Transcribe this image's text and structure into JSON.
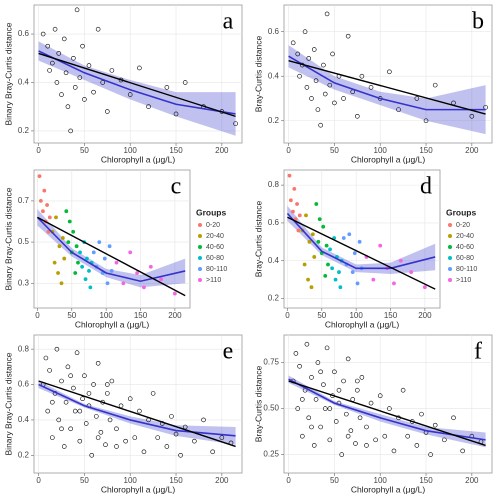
{
  "chart_data": [
    {
      "type": "scatter",
      "panel": "a",
      "x_label": "Chlorophyll a (μg/L)",
      "y_label": "Binary Bray-Curtis distance",
      "xlim": [
        -5,
        222
      ],
      "ylim": [
        0.15,
        0.72
      ],
      "xticks": [
        0,
        50,
        100,
        150,
        200
      ],
      "yticks": [
        0.2,
        0.4,
        0.6
      ],
      "grid": true,
      "series": [
        {
          "color": "#000000",
          "x": [
            5,
            10,
            12,
            15,
            18,
            20,
            22,
            25,
            28,
            30,
            32,
            35,
            38,
            40,
            42,
            45,
            48,
            50,
            55,
            60,
            65,
            70,
            75,
            80,
            90,
            100,
            110,
            120,
            140,
            150,
            160,
            180,
            200,
            215
          ],
          "y": [
            0.6,
            0.55,
            0.45,
            0.48,
            0.62,
            0.4,
            0.52,
            0.35,
            0.58,
            0.44,
            0.3,
            0.2,
            0.5,
            0.38,
            0.7,
            0.42,
            0.55,
            0.33,
            0.47,
            0.36,
            0.62,
            0.4,
            0.28,
            0.45,
            0.41,
            0.35,
            0.46,
            0.3,
            0.38,
            0.27,
            0.4,
            0.3,
            0.28,
            0.23
          ]
        }
      ],
      "linear_fit": {
        "color": "#000000",
        "x": [
          0,
          215
        ],
        "y": [
          0.52,
          0.26
        ]
      },
      "loess_fit": {
        "color": "#3333cc",
        "x": [
          0,
          50,
          100,
          150,
          215
        ],
        "y": [
          0.53,
          0.44,
          0.37,
          0.31,
          0.27
        ],
        "lower": [
          0.49,
          0.41,
          0.33,
          0.26,
          0.18
        ],
        "upper": [
          0.57,
          0.47,
          0.41,
          0.36,
          0.36
        ]
      }
    },
    {
      "type": "scatter",
      "panel": "b",
      "x_label": "Chlorophyll a (μg/L)",
      "y_label": "Bray-Curtis distance",
      "xlim": [
        -5,
        222
      ],
      "ylim": [
        0.1,
        0.72
      ],
      "xticks": [
        0,
        50,
        100,
        150,
        200
      ],
      "yticks": [
        0.2,
        0.4,
        0.6
      ],
      "grid": true,
      "series": [
        {
          "color": "#000000",
          "x": [
            5,
            10,
            12,
            15,
            18,
            20,
            22,
            25,
            28,
            30,
            32,
            35,
            38,
            40,
            42,
            45,
            48,
            50,
            55,
            60,
            65,
            70,
            75,
            80,
            90,
            100,
            110,
            120,
            140,
            150,
            160,
            180,
            200,
            215
          ],
          "y": [
            0.55,
            0.5,
            0.4,
            0.45,
            0.6,
            0.35,
            0.48,
            0.3,
            0.52,
            0.38,
            0.25,
            0.18,
            0.45,
            0.32,
            0.68,
            0.36,
            0.5,
            0.28,
            0.4,
            0.3,
            0.58,
            0.33,
            0.22,
            0.4,
            0.35,
            0.3,
            0.42,
            0.25,
            0.3,
            0.2,
            0.36,
            0.28,
            0.22,
            0.26
          ]
        }
      ],
      "linear_fit": {
        "color": "#000000",
        "x": [
          0,
          215
        ],
        "y": [
          0.47,
          0.23
        ]
      },
      "loess_fit": {
        "color": "#3333cc",
        "x": [
          0,
          50,
          100,
          150,
          215
        ],
        "y": [
          0.49,
          0.37,
          0.3,
          0.25,
          0.25
        ],
        "lower": [
          0.44,
          0.34,
          0.27,
          0.2,
          0.14
        ],
        "upper": [
          0.54,
          0.4,
          0.33,
          0.3,
          0.36
        ]
      }
    },
    {
      "type": "scatter",
      "panel": "c",
      "x_label": "Chlorophyll a (μg/L)",
      "y_label": "Binary Bray-Curtis distance",
      "legend_title": "Groups",
      "xlim": [
        -5,
        222
      ],
      "ylim": [
        0.18,
        0.85
      ],
      "xticks": [
        0,
        50,
        100,
        150,
        200
      ],
      "yticks": [
        0.3,
        0.5,
        0.7
      ],
      "grid": true,
      "series": [
        {
          "name": "0-20",
          "color": "#f8766d",
          "x": [
            3,
            5,
            8,
            10,
            12,
            14,
            16,
            18
          ],
          "y": [
            0.82,
            0.7,
            0.65,
            0.75,
            0.6,
            0.68,
            0.55,
            0.62
          ]
        },
        {
          "name": "20-40",
          "color": "#b79f00",
          "x": [
            22,
            25,
            27,
            30,
            32,
            35,
            37,
            39
          ],
          "y": [
            0.55,
            0.4,
            0.62,
            0.35,
            0.48,
            0.3,
            0.52,
            0.42
          ]
        },
        {
          "name": "40-60",
          "color": "#00ba38",
          "x": [
            42,
            45,
            47,
            50,
            52,
            55,
            57,
            59
          ],
          "y": [
            0.65,
            0.5,
            0.6,
            0.45,
            0.55,
            0.35,
            0.48,
            0.4
          ]
        },
        {
          "name": "60-80",
          "color": "#00bfc4",
          "x": [
            62,
            65,
            68,
            70,
            72,
            75,
            77,
            79
          ],
          "y": [
            0.45,
            0.38,
            0.5,
            0.32,
            0.42,
            0.36,
            0.28,
            0.4
          ]
        },
        {
          "name": "80-110",
          "color": "#619cff",
          "x": [
            82,
            86,
            90,
            95,
            98,
            102,
            105,
            108
          ],
          "y": [
            0.45,
            0.38,
            0.5,
            0.35,
            0.42,
            0.3,
            0.48,
            0.36
          ]
        },
        {
          "name": ">110",
          "color": "#f564e3",
          "x": [
            115,
            125,
            135,
            145,
            155,
            165,
            180,
            200
          ],
          "y": [
            0.4,
            0.3,
            0.45,
            0.35,
            0.28,
            0.38,
            0.32,
            0.25
          ]
        }
      ],
      "linear_fit": {
        "color": "#000000",
        "x": [
          0,
          215
        ],
        "y": [
          0.62,
          0.24
        ]
      },
      "loess_fit": {
        "color": "#3333cc",
        "x": [
          0,
          50,
          100,
          150,
          215
        ],
        "y": [
          0.62,
          0.45,
          0.35,
          0.31,
          0.36
        ],
        "lower": [
          0.58,
          0.43,
          0.33,
          0.28,
          0.3
        ],
        "upper": [
          0.66,
          0.47,
          0.37,
          0.34,
          0.42
        ]
      }
    },
    {
      "type": "scatter",
      "panel": "d",
      "x_label": "Chlorophyll a (μg/L)",
      "y_label": "Bray-Curtis distance",
      "legend_title": "Groups",
      "xlim": [
        -5,
        222
      ],
      "ylim": [
        0.15,
        0.88
      ],
      "xticks": [
        0,
        50,
        100,
        150,
        200
      ],
      "yticks": [
        0.2,
        0.4,
        0.6,
        0.8
      ],
      "grid": true,
      "series": [
        {
          "name": "0-20",
          "color": "#f8766d",
          "x": [
            3,
            5,
            8,
            10,
            12,
            14,
            16,
            18
          ],
          "y": [
            0.85,
            0.72,
            0.66,
            0.78,
            0.62,
            0.7,
            0.56,
            0.64
          ]
        },
        {
          "name": "20-40",
          "color": "#b79f00",
          "x": [
            22,
            25,
            27,
            30,
            32,
            35,
            37,
            39
          ],
          "y": [
            0.56,
            0.38,
            0.64,
            0.3,
            0.5,
            0.26,
            0.54,
            0.42
          ]
        },
        {
          "name": "40-60",
          "color": "#00ba38",
          "x": [
            42,
            45,
            47,
            50,
            52,
            55,
            57,
            59
          ],
          "y": [
            0.7,
            0.5,
            0.62,
            0.44,
            0.58,
            0.32,
            0.48,
            0.38
          ]
        },
        {
          "name": "60-80",
          "color": "#00bfc4",
          "x": [
            62,
            65,
            68,
            70,
            72,
            75,
            77,
            79
          ],
          "y": [
            0.46,
            0.36,
            0.52,
            0.3,
            0.42,
            0.34,
            0.26,
            0.4
          ]
        },
        {
          "name": "80-110",
          "color": "#619cff",
          "x": [
            82,
            86,
            90,
            95,
            98,
            102,
            105,
            108
          ],
          "y": [
            0.52,
            0.38,
            0.54,
            0.34,
            0.44,
            0.28,
            0.5,
            0.36
          ]
        },
        {
          "name": ">110",
          "color": "#f564e3",
          "x": [
            115,
            125,
            135,
            145,
            155,
            165,
            180,
            200
          ],
          "y": [
            0.42,
            0.3,
            0.48,
            0.36,
            0.28,
            0.4,
            0.34,
            0.26
          ]
        }
      ],
      "linear_fit": {
        "color": "#000000",
        "x": [
          0,
          215
        ],
        "y": [
          0.63,
          0.25
        ]
      },
      "loess_fit": {
        "color": "#3333cc",
        "x": [
          0,
          50,
          100,
          150,
          215
        ],
        "y": [
          0.65,
          0.45,
          0.36,
          0.36,
          0.42
        ],
        "lower": [
          0.61,
          0.43,
          0.34,
          0.33,
          0.35
        ],
        "upper": [
          0.69,
          0.47,
          0.38,
          0.39,
          0.49
        ]
      }
    },
    {
      "type": "scatter",
      "panel": "e",
      "x_label": "Chlorophyll a (μg/L)",
      "y_label": "Binary Bray-Curtis distance",
      "xlim": [
        -5,
        222
      ],
      "ylim": [
        0.1,
        0.88
      ],
      "xticks": [
        0,
        50,
        100,
        150,
        200
      ],
      "yticks": [
        0.2,
        0.4,
        0.6,
        0.8
      ],
      "grid": true,
      "series": [
        {
          "color": "#000000",
          "x": [
            5,
            8,
            10,
            12,
            15,
            18,
            20,
            22,
            25,
            28,
            30,
            32,
            35,
            38,
            40,
            42,
            45,
            48,
            50,
            52,
            55,
            58,
            60,
            63,
            65,
            68,
            70,
            73,
            75,
            78,
            80,
            85,
            90,
            95,
            100,
            105,
            110,
            115,
            120,
            125,
            130,
            135,
            140,
            145,
            150,
            155,
            160,
            170,
            180,
            190,
            200,
            210,
            15,
            25,
            35,
            45,
            55,
            65,
            75,
            85
          ],
          "y": [
            0.6,
            0.75,
            0.45,
            0.68,
            0.3,
            0.55,
            0.8,
            0.4,
            0.62,
            0.25,
            0.5,
            0.7,
            0.35,
            0.58,
            0.45,
            0.78,
            0.28,
            0.52,
            0.65,
            0.38,
            0.48,
            0.2,
            0.6,
            0.42,
            0.72,
            0.33,
            0.5,
            0.26,
            0.55,
            0.4,
            0.62,
            0.35,
            0.48,
            0.28,
            0.52,
            0.3,
            0.45,
            0.22,
            0.4,
            0.55,
            0.3,
            0.38,
            0.25,
            0.42,
            0.32,
            0.2,
            0.36,
            0.28,
            0.4,
            0.22,
            0.3,
            0.27,
            0.5,
            0.35,
            0.65,
            0.45,
            0.55,
            0.3,
            0.6,
            0.25
          ]
        }
      ],
      "linear_fit": {
        "color": "#000000",
        "x": [
          0,
          215
        ],
        "y": [
          0.62,
          0.25
        ]
      },
      "loess_fit": {
        "color": "#3333cc",
        "x": [
          0,
          50,
          100,
          150,
          215
        ],
        "y": [
          0.6,
          0.48,
          0.4,
          0.34,
          0.31
        ],
        "lower": [
          0.58,
          0.47,
          0.38,
          0.31,
          0.26
        ],
        "upper": [
          0.62,
          0.49,
          0.42,
          0.37,
          0.36
        ]
      }
    },
    {
      "type": "scatter",
      "panel": "f",
      "x_label": "Chlorophyll a (μg/L)",
      "y_label": "Bray-Curtis distance",
      "xlim": [
        -5,
        222
      ],
      "ylim": [
        0.15,
        0.9
      ],
      "xticks": [
        0,
        50,
        100,
        150,
        200
      ],
      "yticks": [
        0.25,
        {
          "value": 0.5,
          "label": "0.50"
        },
        0.75
      ],
      "grid": true,
      "series": [
        {
          "color": "#000000",
          "x": [
            5,
            8,
            10,
            12,
            15,
            18,
            20,
            22,
            25,
            28,
            30,
            32,
            35,
            38,
            40,
            42,
            45,
            48,
            50,
            52,
            55,
            58,
            60,
            63,
            65,
            68,
            70,
            73,
            75,
            78,
            80,
            85,
            90,
            95,
            100,
            105,
            110,
            115,
            120,
            125,
            130,
            135,
            140,
            145,
            150,
            155,
            160,
            170,
            180,
            190,
            200,
            210,
            15,
            25,
            35,
            45,
            55,
            65,
            75,
            85
          ],
          "y": [
            0.65,
            0.8,
            0.5,
            0.73,
            0.35,
            0.6,
            0.85,
            0.45,
            0.67,
            0.3,
            0.55,
            0.75,
            0.4,
            0.63,
            0.5,
            0.83,
            0.33,
            0.57,
            0.7,
            0.43,
            0.53,
            0.25,
            0.65,
            0.47,
            0.77,
            0.38,
            0.55,
            0.31,
            0.6,
            0.45,
            0.67,
            0.4,
            0.53,
            0.33,
            0.57,
            0.35,
            0.5,
            0.27,
            0.45,
            0.6,
            0.35,
            0.43,
            0.3,
            0.47,
            0.37,
            0.25,
            0.41,
            0.33,
            0.45,
            0.27,
            0.35,
            0.32,
            0.55,
            0.4,
            0.7,
            0.5,
            0.6,
            0.35,
            0.65,
            0.3
          ]
        }
      ],
      "linear_fit": {
        "color": "#000000",
        "x": [
          0,
          215
        ],
        "y": [
          0.65,
          0.3
        ]
      },
      "loess_fit": {
        "color": "#3333cc",
        "x": [
          0,
          50,
          100,
          150,
          215
        ],
        "y": [
          0.66,
          0.53,
          0.45,
          0.38,
          0.33
        ],
        "lower": [
          0.64,
          0.52,
          0.43,
          0.36,
          0.29
        ],
        "upper": [
          0.68,
          0.54,
          0.47,
          0.4,
          0.37
        ]
      }
    }
  ]
}
